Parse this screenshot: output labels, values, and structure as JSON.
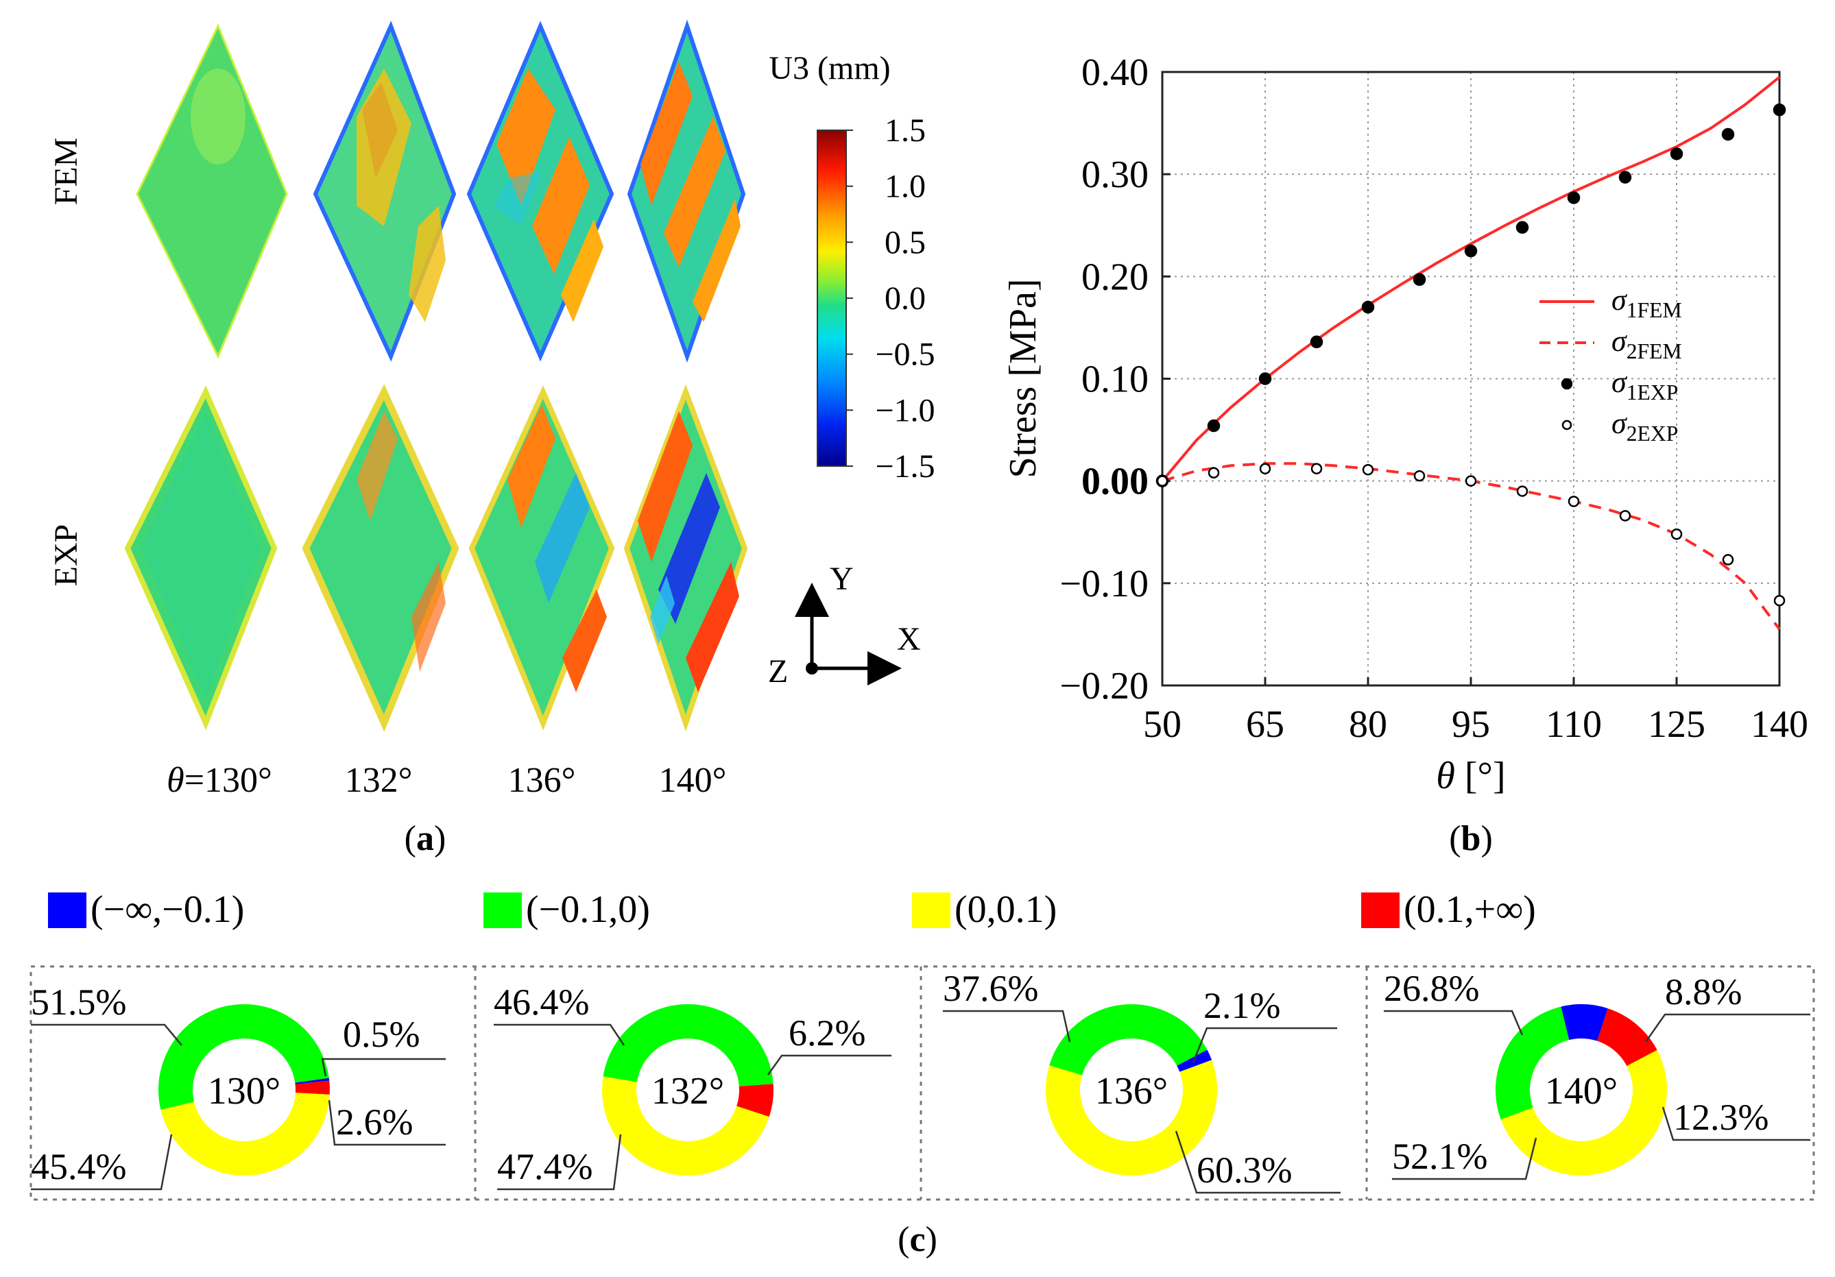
{
  "panel_a": {
    "label": "a",
    "row_labels": [
      "FEM",
      "EXP"
    ],
    "angle_symbol": "θ",
    "angle_eq": "=",
    "angles": [
      "130°",
      "132°",
      "136°",
      "140°"
    ],
    "colorbar": {
      "title": "U3 (mm)",
      "ticks": [
        "1.5",
        "1.0",
        "0.5",
        "0.0",
        "−0.5",
        "−1.0",
        "−1.5"
      ],
      "range": [
        -1.5,
        1.5
      ]
    },
    "axes_triad": {
      "x": "X",
      "y": "Y",
      "z": "Z"
    }
  },
  "panel_b": {
    "label": "b"
  },
  "panel_c": {
    "label": "c",
    "legend": [
      {
        "label": "(−∞,−0.1)",
        "color": "#0000ff"
      },
      {
        "label": "(−0.1,0)",
        "color": "#00ff00"
      },
      {
        "label": "(0,0.1)",
        "color": "#ffff00"
      },
      {
        "label": "(0.1,+∞)",
        "color": "#ff0000"
      }
    ]
  },
  "chart_data": [
    {
      "type": "line",
      "xlabel": "θ [°]",
      "ylabel": "Stress [MPa]",
      "xlim": [
        50,
        140
      ],
      "ylim": [
        -0.2,
        0.4
      ],
      "xticks": [
        "50",
        "65",
        "80",
        "95",
        "110",
        "125",
        "140"
      ],
      "yticks": [
        "0.40",
        "0.30",
        "0.20",
        "0.10",
        "0.00",
        "−0.10",
        "−0.20"
      ],
      "grid": true,
      "legend_position": "right",
      "series": [
        {
          "name": "σ1FEM",
          "style": "solid",
          "color": "#ff2a2a",
          "x": [
            50,
            55,
            60,
            65,
            70,
            75,
            80,
            85,
            90,
            95,
            100,
            105,
            110,
            115,
            120,
            125,
            130,
            135,
            140
          ],
          "y": [
            0.0,
            0.04,
            0.072,
            0.1,
            0.126,
            0.15,
            0.172,
            0.193,
            0.213,
            0.232,
            0.25,
            0.267,
            0.283,
            0.298,
            0.312,
            0.327,
            0.345,
            0.368,
            0.395
          ]
        },
        {
          "name": "σ2FEM",
          "style": "dashed",
          "color": "#ff2a2a",
          "x": [
            50,
            55,
            60,
            65,
            70,
            75,
            80,
            85,
            90,
            95,
            100,
            105,
            110,
            115,
            120,
            125,
            130,
            135,
            140
          ],
          "y": [
            0.0,
            0.01,
            0.015,
            0.017,
            0.017,
            0.015,
            0.012,
            0.008,
            0.004,
            0.0,
            -0.006,
            -0.013,
            -0.02,
            -0.028,
            -0.038,
            -0.052,
            -0.072,
            -0.1,
            -0.145
          ]
        },
        {
          "name": "σ1EXP",
          "style": "filled-marker",
          "color": "#000000",
          "x": [
            50,
            57.5,
            65,
            72.5,
            80,
            87.5,
            95,
            102.5,
            110,
            117.5,
            125,
            132.5,
            140
          ],
          "y": [
            0.0,
            0.054,
            0.1,
            0.136,
            0.17,
            0.197,
            0.225,
            0.248,
            0.277,
            0.297,
            0.32,
            0.339,
            0.363
          ]
        },
        {
          "name": "σ2EXP",
          "style": "open-marker",
          "color": "#000000",
          "x": [
            50,
            57.5,
            65,
            72.5,
            80,
            87.5,
            95,
            102.5,
            110,
            117.5,
            125,
            132.5,
            140
          ],
          "y": [
            0.0,
            0.008,
            0.012,
            0.012,
            0.011,
            0.005,
            0.0,
            -0.01,
            -0.02,
            -0.034,
            -0.052,
            -0.077,
            -0.117
          ]
        }
      ]
    },
    {
      "type": "pie",
      "center_label": "130°",
      "categories": [
        "(−∞,−0.1)",
        "(−0.1,0)",
        "(0,0.1)",
        "(0.1,+∞)"
      ],
      "values": [
        0.5,
        51.5,
        45.4,
        2.6
      ],
      "labels": [
        "0.5%",
        "51.5%",
        "45.4%",
        "2.6%"
      ]
    },
    {
      "type": "pie",
      "center_label": "132°",
      "categories": [
        "(−∞,−0.1)",
        "(−0.1,0)",
        "(0,0.1)",
        "(0.1,+∞)"
      ],
      "values": [
        0,
        46.4,
        47.4,
        6.2
      ],
      "labels": [
        "",
        "46.4%",
        "47.4%",
        "6.2%"
      ]
    },
    {
      "type": "pie",
      "center_label": "136°",
      "categories": [
        "(−∞,−0.1)",
        "(−0.1,0)",
        "(0,0.1)",
        "(0.1,+∞)"
      ],
      "values": [
        2.1,
        37.6,
        60.3,
        0
      ],
      "labels": [
        "2.1%",
        "37.6%",
        "60.3%",
        ""
      ]
    },
    {
      "type": "pie",
      "center_label": "140°",
      "categories": [
        "(−∞,−0.1)",
        "(−0.1,0)",
        "(0,0.1)",
        "(0.1,+∞)"
      ],
      "values": [
        8.8,
        26.8,
        52.1,
        12.3
      ],
      "labels": [
        "8.8%",
        "26.8%",
        "52.1%",
        "12.3%"
      ]
    }
  ]
}
